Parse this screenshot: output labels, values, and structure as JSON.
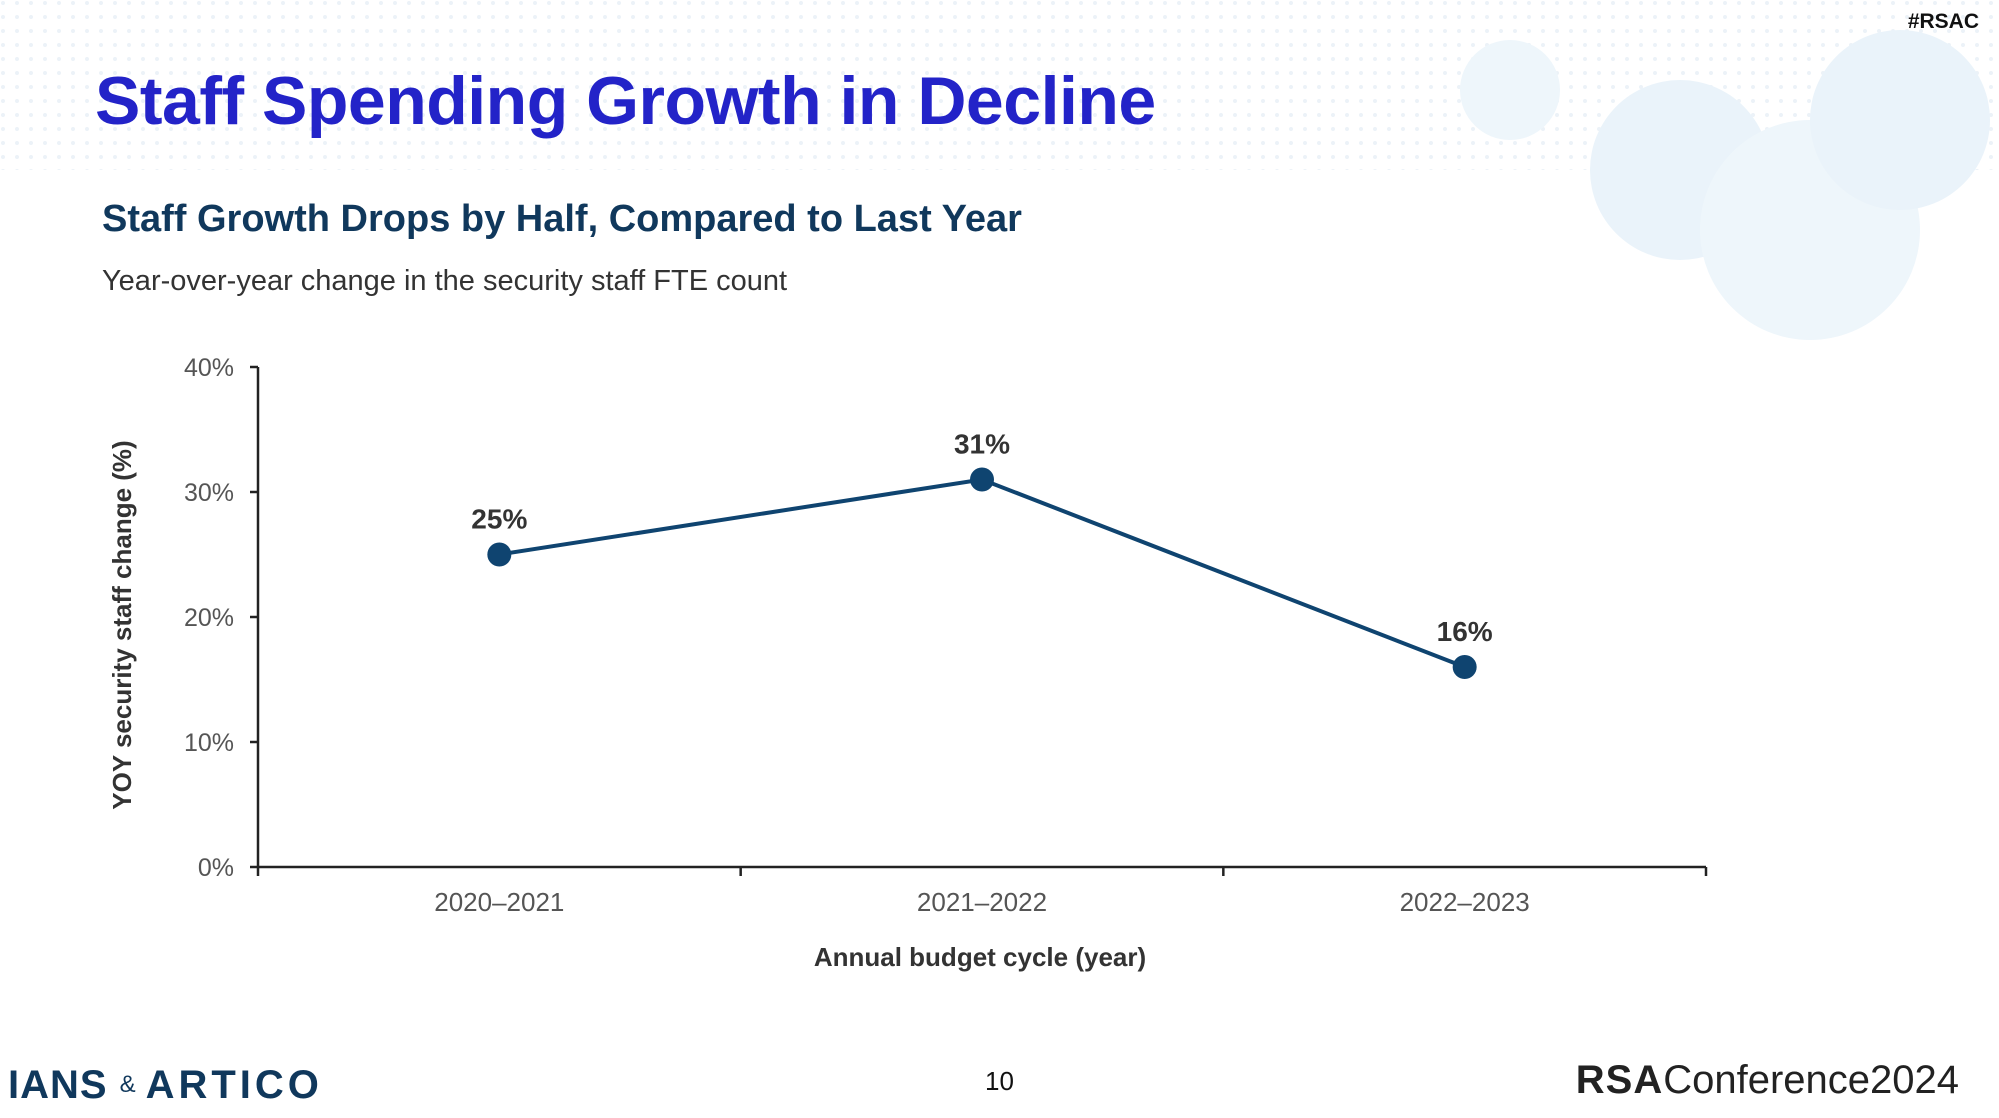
{
  "slide": {
    "hashtag": "#RSAC",
    "title": "Staff Spending Growth in Decline",
    "page_number": "10"
  },
  "footer": {
    "logo_left_1": "IANS",
    "logo_amp": "&",
    "logo_left_2": "ARTICO",
    "logo_right_rsa": "RSA",
    "logo_right_conf": "Conference",
    "logo_right_year": "2024"
  },
  "colors": {
    "title": "#2323c8",
    "chart_title": "#10385c",
    "series": "#0f4470",
    "axis": "#222222"
  },
  "chart_data": {
    "type": "line",
    "title": "Staff Growth Drops by Half, Compared to Last Year",
    "subtitle": "Year-over-year change in the security staff FTE count",
    "xlabel": "Annual budget cycle (year)",
    "ylabel": "YOY security staff change (%)",
    "categories": [
      "2020–2021",
      "2021–2022",
      "2022–2023"
    ],
    "values": [
      25,
      31,
      16
    ],
    "data_labels": [
      "25%",
      "31%",
      "16%"
    ],
    "ylim": [
      0,
      40
    ],
    "yticks": [
      0,
      10,
      20,
      30,
      40
    ],
    "ytick_labels": [
      "0%",
      "10%",
      "20%",
      "30%",
      "40%"
    ],
    "grid": false,
    "legend": "none"
  }
}
